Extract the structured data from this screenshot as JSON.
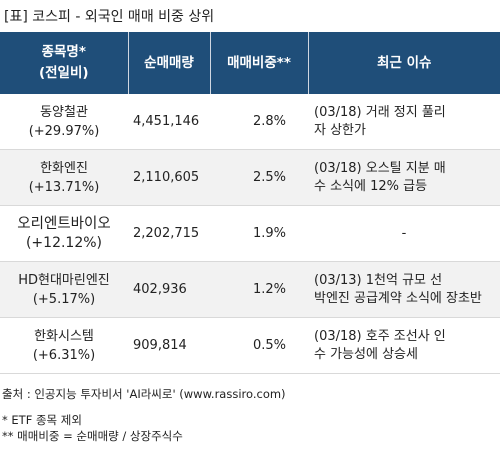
{
  "title": "[표] 코스피 - 외국인 매매 비중 상위",
  "table": {
    "headers": {
      "name": "종목명*",
      "name_sub": "(전일비)",
      "volume": "순매매량",
      "ratio": "매매비중**",
      "issue": "최근 이슈"
    },
    "rows": [
      {
        "name": "동양철관",
        "change": "(+29.97%)",
        "volume": "4,451,146",
        "ratio": "2.8%",
        "issue_line1": "(03/18) 거래 정지 풀리",
        "issue_line2": "자 상한가"
      },
      {
        "name": "한화엔진",
        "change": "(+13.71%)",
        "volume": "2,110,605",
        "ratio": "2.5%",
        "issue_line1": "(03/18) 오스틸 지분 매",
        "issue_line2": "수 소식에 12% 급등"
      },
      {
        "name": "오리엔트바이오",
        "change": "(+12.12%)",
        "volume": "2,202,715",
        "ratio": "1.9%",
        "issue_line1": "-",
        "issue_line2": ""
      },
      {
        "name": "HD현대마린엔진",
        "change": "(+5.17%)",
        "volume": "402,936",
        "ratio": "1.2%",
        "issue_line1": "(03/13) 1천억 규모 선",
        "issue_line2": "박엔진 공급계약 소식에 장초반"
      },
      {
        "name": "한화시스템",
        "change": "(+6.31%)",
        "volume": "909,814",
        "ratio": "0.5%",
        "issue_line1": "(03/18) 호주 조선사 인",
        "issue_line2": "수 가능성에 상승세"
      }
    ]
  },
  "footer": {
    "source": "출처 : 인공지능 투자비서 'AI라씨로' (www.rassiro.com)",
    "note1": "* ETF 종목 제외",
    "note2": "** 매매비중 = 순매매량 / 상장주식수"
  },
  "colors": {
    "header_bg": "#1f4e79",
    "ratio_text": "#d0021b",
    "even_row_bg": "#f2f2f2"
  }
}
